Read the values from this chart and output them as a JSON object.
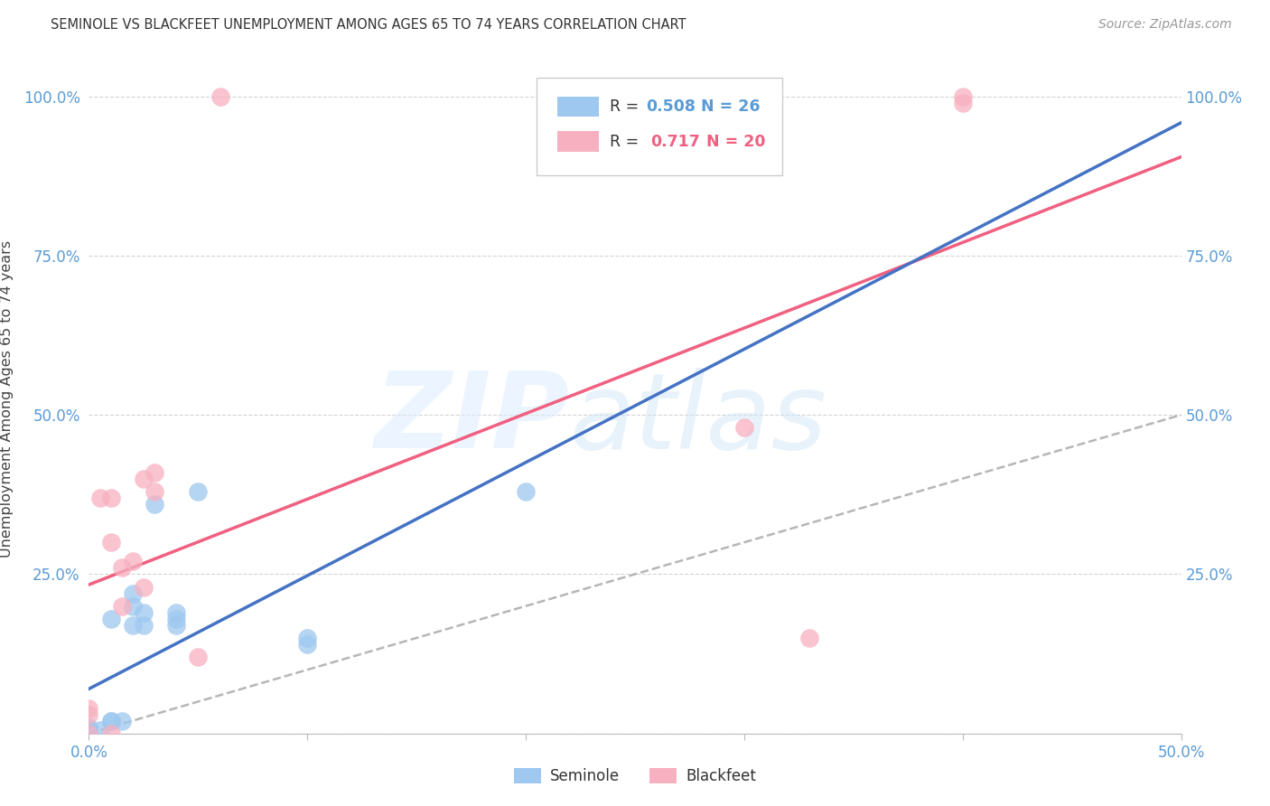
{
  "title": "SEMINOLE VS BLACKFEET UNEMPLOYMENT AMONG AGES 65 TO 74 YEARS CORRELATION CHART",
  "source": "Source: ZipAtlas.com",
  "ylabel": "Unemployment Among Ages 65 to 74 years",
  "xlim": [
    0.0,
    0.5
  ],
  "ylim": [
    0.0,
    1.05
  ],
  "seminole_color": "#9ec8ef",
  "blackfeet_color": "#f7b0c0",
  "seminole_line_color": "#4472c4",
  "blackfeet_line_color": "#f06080",
  "dashed_line_color": "#aaaaaa",
  "seminole_R": 0.508,
  "seminole_N": 26,
  "blackfeet_R": 0.717,
  "blackfeet_N": 20,
  "tick_color": "#5b9bd5",
  "grid_color": "#d0d0d0",
  "seminole_x": [
    0.0,
    0.0,
    0.0,
    0.0,
    0.0,
    0.0,
    0.0,
    0.0,
    0.005,
    0.01,
    0.01,
    0.01,
    0.015,
    0.02,
    0.02,
    0.02,
    0.025,
    0.025,
    0.03,
    0.04,
    0.04,
    0.04,
    0.05,
    0.1,
    0.1,
    0.2
  ],
  "seminole_y": [
    0.0,
    0.0,
    0.0,
    0.0,
    0.005,
    0.005,
    0.005,
    0.01,
    0.005,
    0.02,
    0.02,
    0.18,
    0.02,
    0.17,
    0.2,
    0.22,
    0.17,
    0.19,
    0.36,
    0.17,
    0.18,
    0.19,
    0.38,
    0.14,
    0.15,
    0.38
  ],
  "blackfeet_x": [
    0.0,
    0.0,
    0.0,
    0.005,
    0.01,
    0.01,
    0.01,
    0.015,
    0.015,
    0.02,
    0.025,
    0.025,
    0.03,
    0.03,
    0.05,
    0.06,
    0.3,
    0.33,
    0.4,
    0.4
  ],
  "blackfeet_y": [
    0.03,
    0.04,
    0.0,
    0.37,
    0.0,
    0.3,
    0.37,
    0.2,
    0.26,
    0.27,
    0.23,
    0.4,
    0.41,
    0.38,
    0.12,
    1.0,
    0.48,
    0.15,
    0.99,
    1.0
  ]
}
